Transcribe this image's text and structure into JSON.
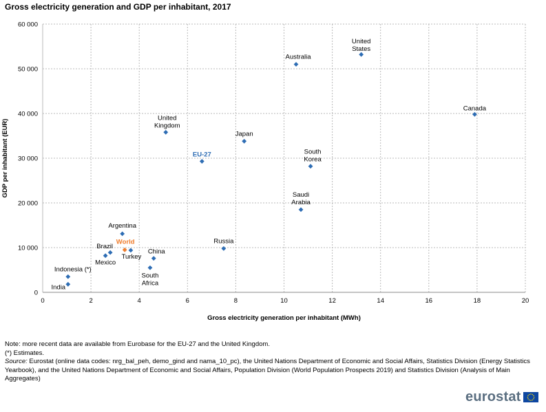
{
  "chart_data": {
    "type": "scatter",
    "title": "Gross electricity generation and GDP per inhabitant, 2017",
    "xlabel": "Gross electricity generation per inhabitant (MWh)",
    "ylabel": "GDP per inhabitant (EUR)",
    "xlim": [
      0,
      20
    ],
    "ylim": [
      0,
      60000
    ],
    "x_ticks": [
      0,
      2,
      4,
      6,
      8,
      10,
      12,
      14,
      16,
      18,
      20
    ],
    "x_tick_labels": [
      "0",
      "2",
      "4",
      "6",
      "8",
      "10",
      "12",
      "14",
      "16",
      "18",
      "20"
    ],
    "y_ticks": [
      0,
      10000,
      20000,
      30000,
      40000,
      50000,
      60000
    ],
    "y_tick_labels": [
      "0",
      "10 000",
      "20 000",
      "30 000",
      "40 000",
      "50 000",
      "60 000"
    ],
    "grid": true,
    "colors": {
      "default": "#2e6db4",
      "eu": "#2e6db4",
      "world": "#ef7d2d",
      "text": "#000000"
    },
    "points": [
      {
        "label": [
          "United",
          "States"
        ],
        "x": 13.2,
        "y": 53200,
        "style": "normal"
      },
      {
        "label": [
          "Australia"
        ],
        "x": 10.5,
        "y": 51000,
        "style": "normal"
      },
      {
        "label": [
          "Canada"
        ],
        "x": 17.9,
        "y": 39800,
        "style": "normal"
      },
      {
        "label": [
          "United",
          "Kingdom"
        ],
        "x": 5.1,
        "y": 35800,
        "style": "normal"
      },
      {
        "label": [
          "Japan"
        ],
        "x": 8.35,
        "y": 33800,
        "style": "normal"
      },
      {
        "label": [
          "EU-27"
        ],
        "x": 6.6,
        "y": 29300,
        "style": "eu"
      },
      {
        "label": [
          "South",
          "Korea"
        ],
        "x": 11.1,
        "y": 28200,
        "style": "normal"
      },
      {
        "label": [
          "Saudi",
          "Arabia"
        ],
        "x": 10.7,
        "y": 18500,
        "style": "normal"
      },
      {
        "label": [
          "Argentina"
        ],
        "x": 3.3,
        "y": 13100,
        "style": "normal"
      },
      {
        "label": [
          "Russia"
        ],
        "x": 7.5,
        "y": 9800,
        "style": "normal"
      },
      {
        "label": [
          "World"
        ],
        "x": 3.4,
        "y": 9500,
        "style": "world"
      },
      {
        "label": [
          "Brazil"
        ],
        "x": 2.8,
        "y": 8900,
        "style": "normal"
      },
      {
        "label": [
          "Turkey"
        ],
        "x": 3.65,
        "y": 9400,
        "style": "normal"
      },
      {
        "label": [
          "Mexico"
        ],
        "x": 2.6,
        "y": 8200,
        "style": "normal"
      },
      {
        "label": [
          "China"
        ],
        "x": 4.6,
        "y": 7600,
        "style": "normal"
      },
      {
        "label": [
          "South",
          "Africa"
        ],
        "x": 4.45,
        "y": 5500,
        "style": "normal"
      },
      {
        "label": [
          "Indonesia (*)"
        ],
        "x": 1.05,
        "y": 3500,
        "style": "normal"
      },
      {
        "label": [
          "India"
        ],
        "x": 1.05,
        "y": 1800,
        "style": "normal"
      }
    ]
  },
  "notes": {
    "line1": "Note: more recent data are available from Eurobase for the EU-27 and the United Kingdom.",
    "line2": "(*) Estimates.",
    "source_label": "Source:",
    "source_text": " Eurostat (online data codes: nrg_bal_peh, demo_gind and nama_10_pc), the United Nations Department of Economic and Social Affairs, Statistics Division (Energy Statistics Yearbook), and the United Nations Department of Economic and Social Affairs, Population Division (World Population Prospects 2019) and Statistics Division (Analysis of Main Aggregates)"
  },
  "logo": {
    "text": "eurostat",
    "flag_color": "#0e47a1",
    "star_color": "#ffdd00"
  }
}
